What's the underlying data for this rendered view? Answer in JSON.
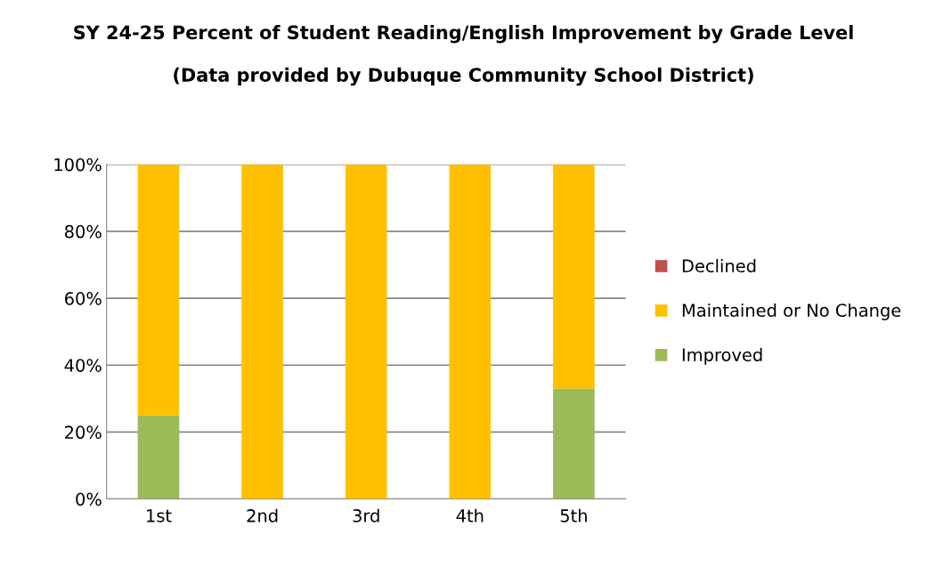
{
  "chart_data": {
    "type": "bar",
    "stacked": true,
    "title": "SY 24-25 Percent of Student Reading/English Improvement by Grade Level",
    "subtitle": "(Data provided by Dubuque Community School District)",
    "categories": [
      "1st",
      "2nd",
      "3rd",
      "4th",
      "5th"
    ],
    "series": [
      {
        "name": "Improved",
        "color": "#9bbb59",
        "values": [
          25,
          0,
          0,
          0,
          33
        ]
      },
      {
        "name": "Maintained or No Change",
        "color": "#ffc000",
        "values": [
          75,
          100,
          100,
          100,
          67
        ]
      },
      {
        "name": "Declined",
        "color": "#c0504d",
        "values": [
          0,
          0,
          0,
          0,
          0
        ]
      }
    ],
    "ylim": [
      0,
      100
    ],
    "yticks": [
      {
        "value": 0,
        "label": "0%"
      },
      {
        "value": 20,
        "label": "20%"
      },
      {
        "value": 40,
        "label": "40%"
      },
      {
        "value": 60,
        "label": "60%"
      },
      {
        "value": 80,
        "label": "80%"
      },
      {
        "value": 100,
        "label": "100%"
      }
    ],
    "grid": "y",
    "legend": "right"
  }
}
